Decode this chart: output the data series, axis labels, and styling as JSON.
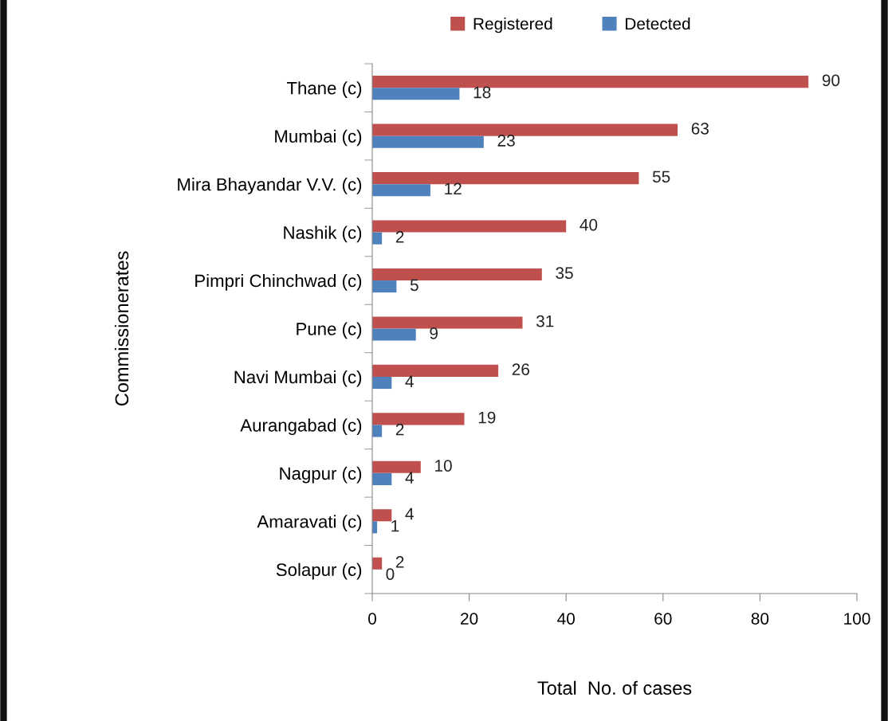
{
  "chart_data": {
    "type": "bar",
    "orientation": "horizontal",
    "xlabel": "Total  No. of cases",
    "ylabel": "Commissionerates",
    "categories": [
      "Thane (c)",
      "Mumbai (c)",
      "Mira Bhayandar V.V. (c)",
      "Nashik (c)",
      "Pimpri Chinchwad (c)",
      "Pune (c)",
      "Navi Mumbai (c)",
      "Aurangabad (c)",
      "Nagpur (c)",
      "Amaravati (c)",
      "Solapur (c)"
    ],
    "series": [
      {
        "name": "Registered",
        "color": "#c0504d",
        "values": [
          90,
          63,
          55,
          40,
          35,
          31,
          26,
          19,
          10,
          4,
          2
        ]
      },
      {
        "name": "Detected",
        "color": "#4f81bd",
        "values": [
          18,
          23,
          12,
          2,
          5,
          9,
          4,
          2,
          4,
          1,
          0
        ]
      }
    ],
    "xlim": [
      0,
      100
    ],
    "xticks": [
      0,
      20,
      40,
      60,
      80,
      100
    ],
    "data_labels": true,
    "legend": "top",
    "grid": false
  }
}
